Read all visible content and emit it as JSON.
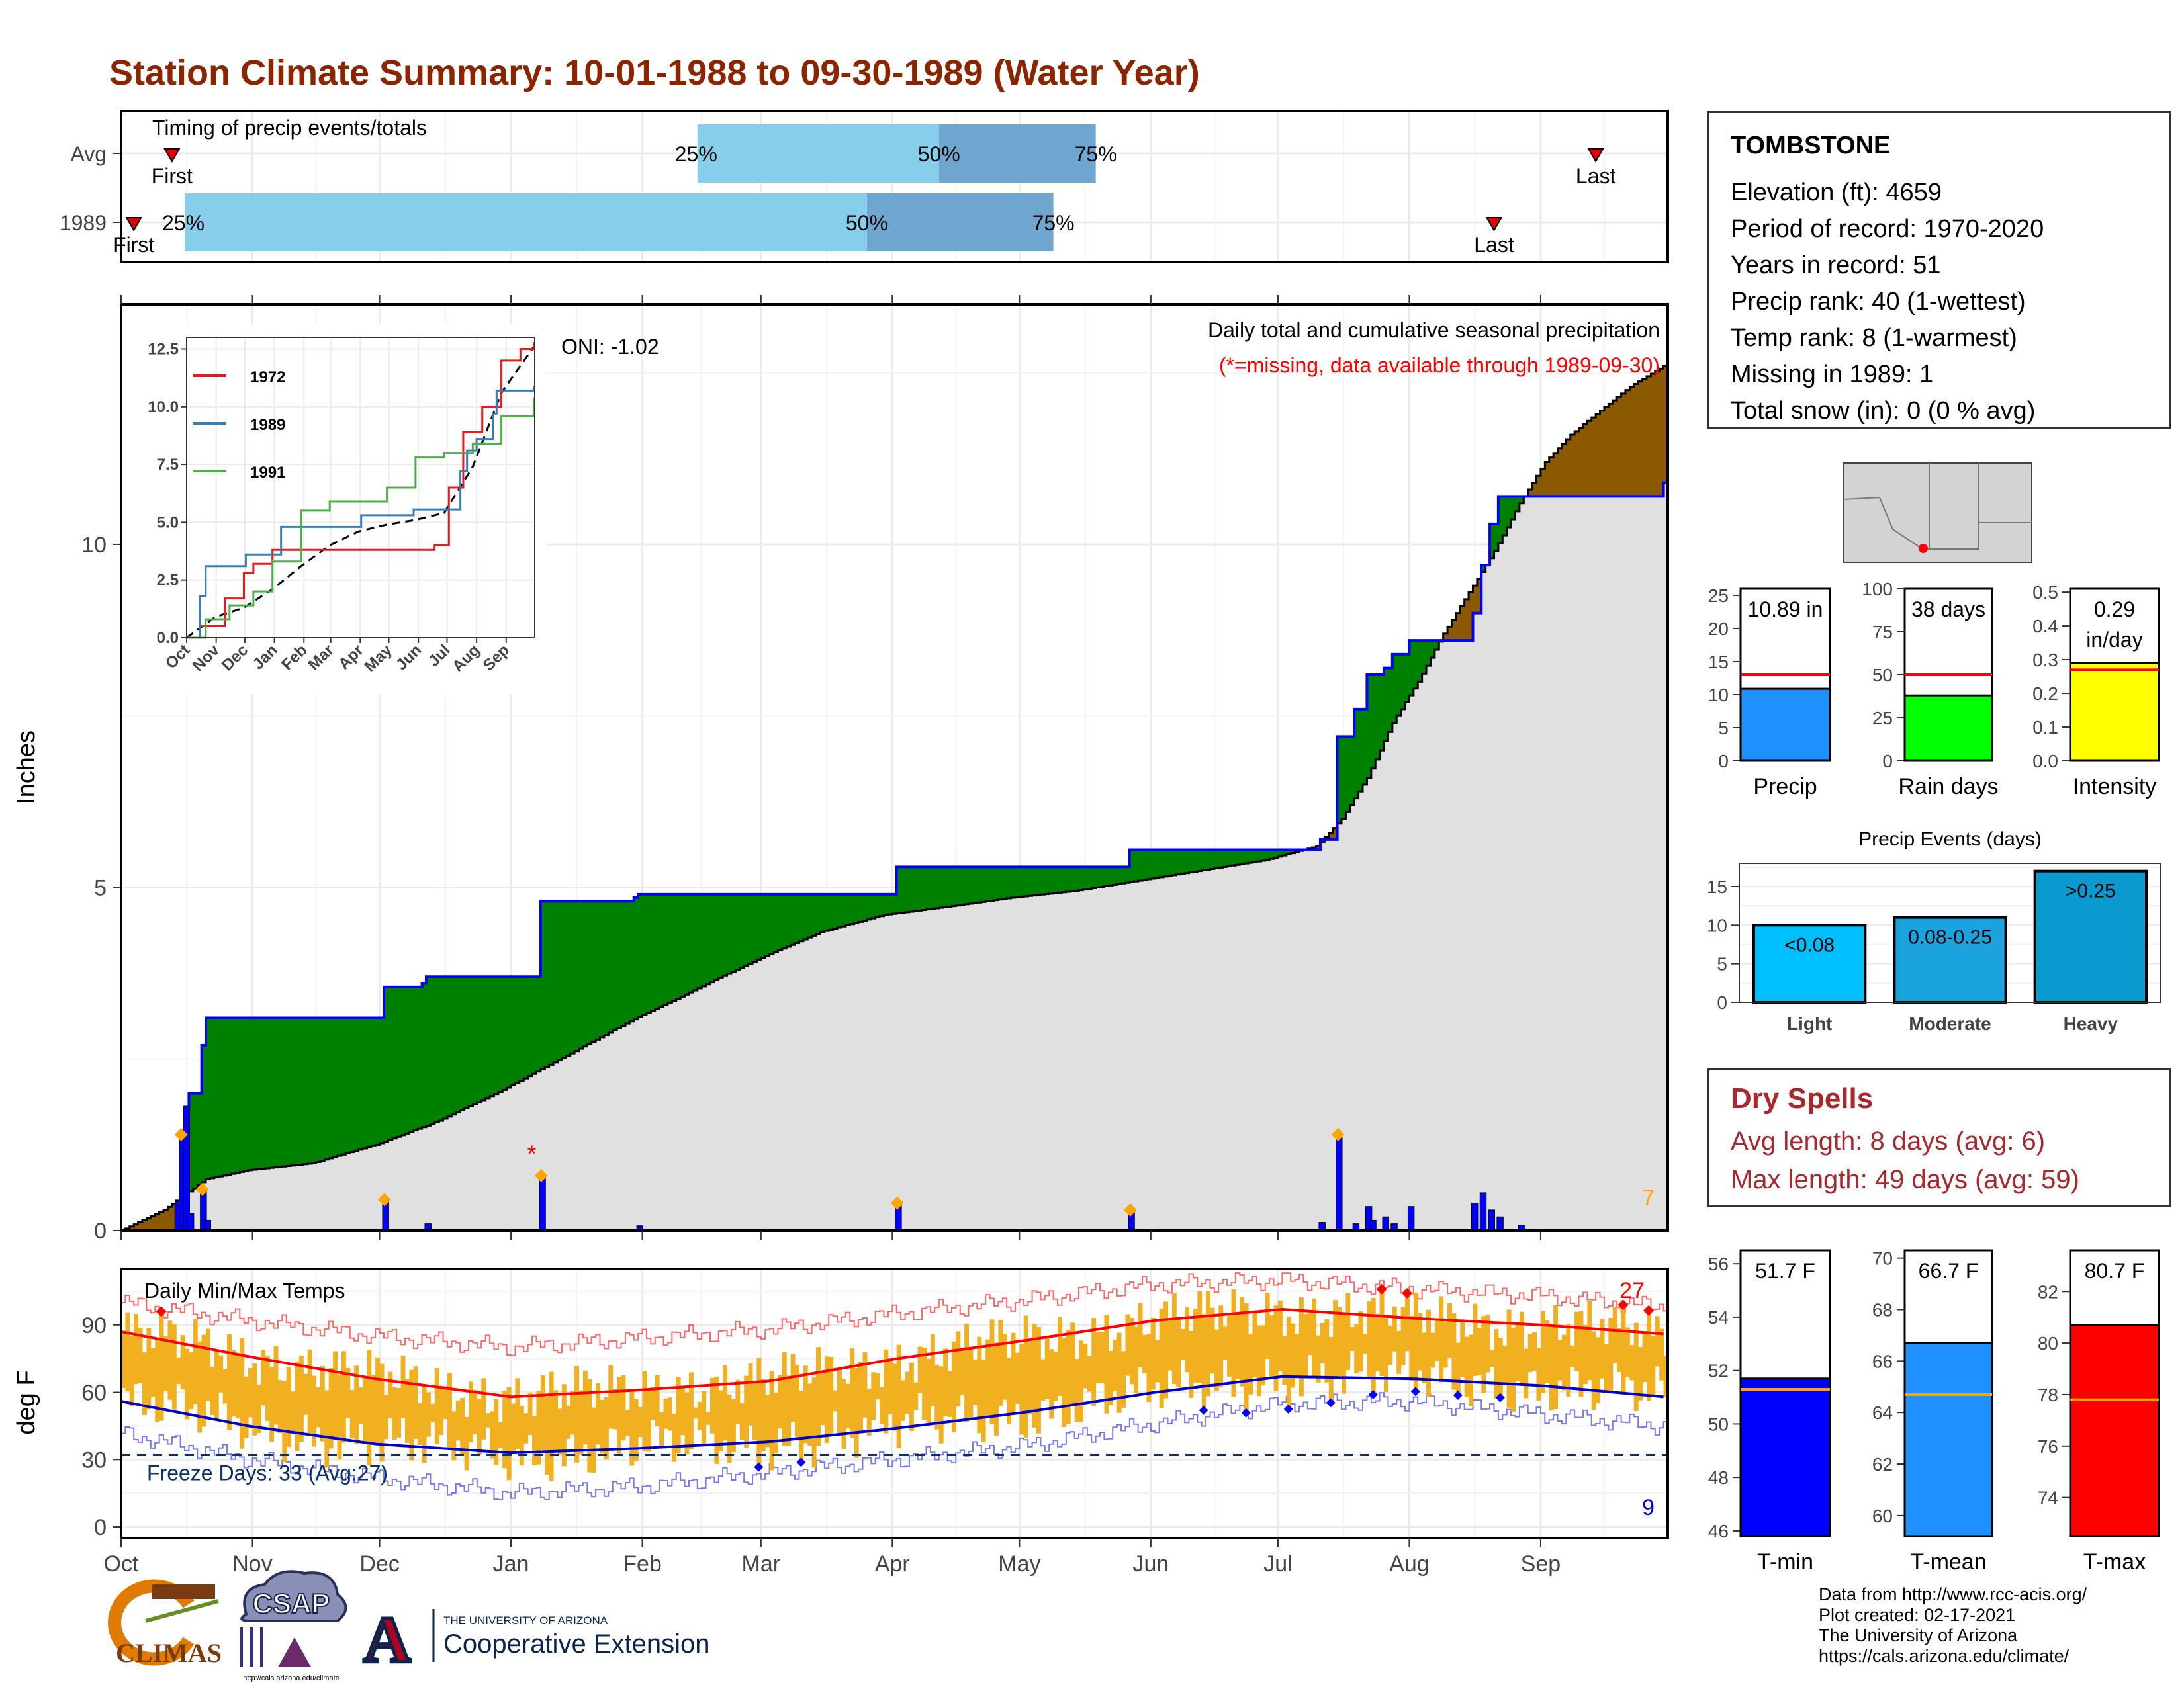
{
  "title": "Station Climate Summary: 10-01-1988 to 09-30-1989 (Water Year)",
  "colors": {
    "title": "#8b2500",
    "wet": "#008000",
    "dry": "#8b5a00",
    "normal_fill": "#e0e0e0",
    "bar": "#0000ff",
    "marker": "#ffa500",
    "tmax": "#ff0000",
    "tmin": "#0000cc",
    "range": "#f0b000"
  },
  "timing": {
    "label": "Timing of precip events/totals",
    "rows": [
      {
        "name": "Avg",
        "first": "First",
        "last": "Last",
        "p25": "25%",
        "p50": "50%",
        "p75": "75%",
        "first_doy": 12,
        "p25_doy": 136,
        "p50_doy": 193,
        "p75_doy": 230,
        "last_doy": 348
      },
      {
        "name": "1989",
        "first": "First",
        "last": "Last",
        "p25": "25%",
        "p50": "50%",
        "p75": "75%",
        "first_doy": 3,
        "p25_doy": 15,
        "p50_doy": 176,
        "p75_doy": 220,
        "last_doy": 324
      }
    ]
  },
  "precip": {
    "ylabel": "Inches",
    "header": "Daily total and cumulative seasonal precipitation",
    "missing_note": "(*=missing, data available through 1989-09-30)",
    "oni": "ONI: -1.02",
    "count_label": "7",
    "missing_marker": "*",
    "missing_marker_doy": 98,
    "yticks": [
      0,
      5,
      10
    ],
    "ylim": [
      0,
      13.5
    ],
    "cumulative_observed": [
      [
        0,
        0
      ],
      [
        13,
        0.4
      ],
      [
        14,
        1.3
      ],
      [
        15,
        1.8
      ],
      [
        16,
        2.0
      ],
      [
        19,
        2.7
      ],
      [
        20,
        3.1
      ],
      [
        61,
        3.1
      ],
      [
        62,
        3.55
      ],
      [
        71,
        3.6
      ],
      [
        72,
        3.7
      ],
      [
        98,
        3.7
      ],
      [
        99,
        4.8
      ],
      [
        121,
        4.85
      ],
      [
        122,
        4.9
      ],
      [
        182,
        4.9
      ],
      [
        183,
        5.3
      ],
      [
        237,
        5.3
      ],
      [
        238,
        5.55
      ],
      [
        282,
        5.55
      ],
      [
        283,
        5.7
      ],
      [
        286,
        5.7
      ],
      [
        287,
        7.2
      ],
      [
        290,
        7.2
      ],
      [
        291,
        7.6
      ],
      [
        293,
        7.6
      ],
      [
        294,
        8.1
      ],
      [
        298,
        8.2
      ],
      [
        300,
        8.4
      ],
      [
        303,
        8.4
      ],
      [
        304,
        8.6
      ],
      [
        318,
        8.6
      ],
      [
        319,
        9.0
      ],
      [
        321,
        9.7
      ],
      [
        323,
        10.3
      ],
      [
        325,
        10.7
      ],
      [
        329,
        10.7
      ],
      [
        330,
        10.7
      ],
      [
        364,
        10.9
      ]
    ],
    "cumulative_normal": [
      [
        0,
        0
      ],
      [
        10,
        0.3
      ],
      [
        20,
        0.75
      ],
      [
        30,
        0.88
      ],
      [
        45,
        0.98
      ],
      [
        60,
        1.25
      ],
      [
        75,
        1.6
      ],
      [
        90,
        2.05
      ],
      [
        105,
        2.55
      ],
      [
        120,
        3.05
      ],
      [
        135,
        3.5
      ],
      [
        150,
        3.95
      ],
      [
        165,
        4.35
      ],
      [
        180,
        4.6
      ],
      [
        195,
        4.72
      ],
      [
        210,
        4.85
      ],
      [
        225,
        4.95
      ],
      [
        240,
        5.1
      ],
      [
        255,
        5.25
      ],
      [
        270,
        5.4
      ],
      [
        282,
        5.6
      ],
      [
        288,
        6.0
      ],
      [
        294,
        6.6
      ],
      [
        300,
        7.4
      ],
      [
        306,
        8.0
      ],
      [
        312,
        8.7
      ],
      [
        318,
        9.3
      ],
      [
        324,
        9.9
      ],
      [
        330,
        10.6
      ],
      [
        336,
        11.2
      ],
      [
        342,
        11.6
      ],
      [
        348,
        11.9
      ],
      [
        356,
        12.3
      ],
      [
        364,
        12.6
      ]
    ],
    "daily": [
      [
        13,
        0.4
      ],
      [
        14,
        1.4
      ],
      [
        15,
        1.8
      ],
      [
        16,
        0.25
      ],
      [
        19,
        0.6
      ],
      [
        20,
        0.15
      ],
      [
        62,
        0.45
      ],
      [
        72,
        0.1
      ],
      [
        99,
        0.8
      ],
      [
        122,
        0.07
      ],
      [
        183,
        0.4
      ],
      [
        238,
        0.3
      ],
      [
        283,
        0.12
      ],
      [
        287,
        1.4
      ],
      [
        291,
        0.1
      ],
      [
        294,
        0.35
      ],
      [
        295,
        0.15
      ],
      [
        298,
        0.2
      ],
      [
        300,
        0.1
      ],
      [
        304,
        0.35
      ],
      [
        319,
        0.4
      ],
      [
        321,
        0.55
      ],
      [
        323,
        0.3
      ],
      [
        325,
        0.2
      ],
      [
        330,
        0.08
      ]
    ],
    "markers_doy": [
      14,
      19,
      62,
      99,
      183,
      238,
      287
    ]
  },
  "inset": {
    "yticks": [
      "0.0",
      "2.5",
      "5.0",
      "7.5",
      "10.0",
      "12.5"
    ],
    "months": [
      "Oct",
      "Nov",
      "Dec",
      "Jan",
      "Feb",
      "Mar",
      "Apr",
      "May",
      "Jun",
      "Jul",
      "Aug",
      "Sep"
    ],
    "series": [
      {
        "name": "1972",
        "color": "#e41a1c",
        "points": [
          [
            0,
            0
          ],
          [
            14,
            0.5
          ],
          [
            40,
            1.7
          ],
          [
            60,
            2.8
          ],
          [
            70,
            3.2
          ],
          [
            90,
            3.8
          ],
          [
            150,
            3.8
          ],
          [
            160,
            3.8
          ],
          [
            250,
            3.8
          ],
          [
            260,
            4.0
          ],
          [
            275,
            6.5
          ],
          [
            290,
            8.9
          ],
          [
            310,
            10.0
          ],
          [
            330,
            12.0
          ],
          [
            350,
            12.5
          ],
          [
            364,
            12.8
          ]
        ]
      },
      {
        "name": "1989",
        "color": "#377eb8",
        "points": [
          [
            0,
            0
          ],
          [
            14,
            1.8
          ],
          [
            20,
            3.1
          ],
          [
            62,
            3.6
          ],
          [
            99,
            4.8
          ],
          [
            183,
            5.3
          ],
          [
            238,
            5.55
          ],
          [
            287,
            7.2
          ],
          [
            294,
            8.1
          ],
          [
            304,
            8.6
          ],
          [
            321,
            9.7
          ],
          [
            325,
            10.7
          ],
          [
            364,
            10.9
          ]
        ]
      },
      {
        "name": "1991",
        "color": "#4daf4a",
        "points": [
          [
            0,
            0
          ],
          [
            20,
            0.8
          ],
          [
            45,
            1.4
          ],
          [
            70,
            2.0
          ],
          [
            90,
            3.3
          ],
          [
            120,
            5.5
          ],
          [
            150,
            5.9
          ],
          [
            210,
            6.5
          ],
          [
            240,
            7.8
          ],
          [
            270,
            8.0
          ],
          [
            300,
            8.4
          ],
          [
            330,
            9.6
          ],
          [
            364,
            10.4
          ]
        ]
      }
    ],
    "normal": [
      [
        0,
        0
      ],
      [
        30,
        0.9
      ],
      [
        60,
        1.3
      ],
      [
        90,
        2.1
      ],
      [
        120,
        3.1
      ],
      [
        150,
        4.0
      ],
      [
        180,
        4.6
      ],
      [
        210,
        4.9
      ],
      [
        240,
        5.1
      ],
      [
        270,
        5.4
      ],
      [
        300,
        7.4
      ],
      [
        330,
        10.6
      ],
      [
        364,
        12.6
      ]
    ]
  },
  "temps": {
    "ylabel": "deg F",
    "label": "Daily Min/Max Temps",
    "freeze_label": "Freeze Days: 33 (Avg:27)",
    "hot_count": "27",
    "cold_count": "9",
    "yticks": [
      0,
      30,
      60,
      90
    ],
    "ylim": [
      -5,
      115
    ],
    "freeze_line": 32,
    "months": [
      "Oct",
      "Nov",
      "Dec",
      "Jan",
      "Feb",
      "Mar",
      "Apr",
      "May",
      "Jun",
      "Jul",
      "Aug",
      "Sep"
    ],
    "avg_max": [
      [
        0,
        87
      ],
      [
        30,
        76
      ],
      [
        60,
        66
      ],
      [
        92,
        58
      ],
      [
        122,
        61
      ],
      [
        153,
        65
      ],
      [
        183,
        75
      ],
      [
        213,
        83
      ],
      [
        244,
        92
      ],
      [
        274,
        97
      ],
      [
        305,
        93
      ],
      [
        335,
        90
      ],
      [
        364,
        86
      ]
    ],
    "avg_min": [
      [
        0,
        56
      ],
      [
        30,
        45
      ],
      [
        60,
        37
      ],
      [
        92,
        33
      ],
      [
        122,
        35
      ],
      [
        153,
        38
      ],
      [
        183,
        44
      ],
      [
        213,
        51
      ],
      [
        244,
        60
      ],
      [
        274,
        67
      ],
      [
        305,
        66
      ],
      [
        335,
        63
      ],
      [
        364,
        58
      ]
    ],
    "rec_max": [
      [
        0,
        100
      ],
      [
        30,
        92
      ],
      [
        60,
        85
      ],
      [
        92,
        80
      ],
      [
        122,
        84
      ],
      [
        153,
        88
      ],
      [
        183,
        95
      ],
      [
        213,
        101
      ],
      [
        244,
        108
      ],
      [
        274,
        110
      ],
      [
        305,
        106
      ],
      [
        335,
        103
      ],
      [
        364,
        98
      ]
    ],
    "rec_min": [
      [
        0,
        42
      ],
      [
        30,
        30
      ],
      [
        60,
        22
      ],
      [
        92,
        15
      ],
      [
        122,
        18
      ],
      [
        153,
        24
      ],
      [
        183,
        30
      ],
      [
        213,
        36
      ],
      [
        244,
        46
      ],
      [
        274,
        55
      ],
      [
        305,
        56
      ],
      [
        335,
        50
      ],
      [
        364,
        45
      ]
    ]
  },
  "summary_bars": [
    {
      "name": "Precip",
      "label": "10.89 in",
      "value": 10.89,
      "avg": 13.0,
      "ymax": 26,
      "ticks": [
        0,
        5,
        10,
        15,
        20,
        25
      ],
      "color": "#1e90ff",
      "ymin": 0
    },
    {
      "name": "Rain days",
      "label": "38 days",
      "value": 38,
      "avg": 50,
      "ymax": 100,
      "ticks": [
        0,
        25,
        50,
        75,
        100
      ],
      "color": "#00ff00",
      "ymin": 0
    },
    {
      "name": "Intensity",
      "label": "0.29\nin/day",
      "value": 0.29,
      "avg": 0.27,
      "ymax": 0.51,
      "ticks": [
        0.0,
        0.1,
        0.2,
        0.3,
        0.4,
        0.5
      ],
      "color": "#ffff00",
      "ymin": 0
    }
  ],
  "events": {
    "title": "Precip Events (days)",
    "ticks": [
      0,
      5,
      10,
      15
    ],
    "ymax": 18,
    "bars": [
      {
        "name": "Light",
        "label": "<0.08",
        "value": 10,
        "color": "#00bfff"
      },
      {
        "name": "Moderate",
        "label": "0.08-0.25",
        "value": 11,
        "color": "#1ba3e0"
      },
      {
        "name": "Heavy",
        "label": ">0.25",
        "value": 17,
        "color": "#0a9ad0"
      }
    ]
  },
  "temp_bars": [
    {
      "name": "T-min",
      "label": "51.7 F",
      "value": 51.7,
      "avg": 51.3,
      "ymin": 45.8,
      "ymax": 56.5,
      "ticks": [
        46,
        48,
        50,
        52,
        54,
        56
      ],
      "color": "#0000ff"
    },
    {
      "name": "T-mean",
      "label": "66.7 F",
      "value": 66.7,
      "avg": 64.7,
      "ymin": 59.2,
      "ymax": 70.3,
      "ticks": [
        60,
        62,
        64,
        66,
        68,
        70
      ],
      "color": "#1e90ff"
    },
    {
      "name": "T-max",
      "label": "80.7 F",
      "value": 80.7,
      "avg": 77.8,
      "ymin": 72.5,
      "ymax": 83.6,
      "ticks": [
        74,
        76,
        78,
        80,
        82
      ],
      "color": "#ff0000"
    }
  ],
  "station": {
    "name": "TOMBSTONE",
    "lines": [
      "Elevation (ft): 4659",
      "Period of record: 1970-2020",
      "Years in record: 51",
      "Precip rank: 40 (1-wettest)",
      "Temp rank: 8 (1-warmest)",
      "Missing in 1989: 1",
      "Total snow (in): 0 (0 % avg)"
    ]
  },
  "dry_spells": {
    "title": "Dry Spells",
    "lines": [
      "Avg length: 8 days (avg: 6)",
      "Max length: 49 days (avg: 59)"
    ]
  },
  "credits": [
    "Data from http://www.rcc-acis.org/",
    "Plot created: 02-17-2021",
    "The University of Arizona",
    "https://cals.arizona.edu/climate/"
  ],
  "logos": {
    "climas": "CLIMAS",
    "csap": "CSAP",
    "csap_url": "http://cals.arizona.edu/climate",
    "ua_small": "THE UNIVERSITY OF ARIZONA",
    "ua_big": "Cooperative Extension",
    "ua_letter": "A"
  }
}
